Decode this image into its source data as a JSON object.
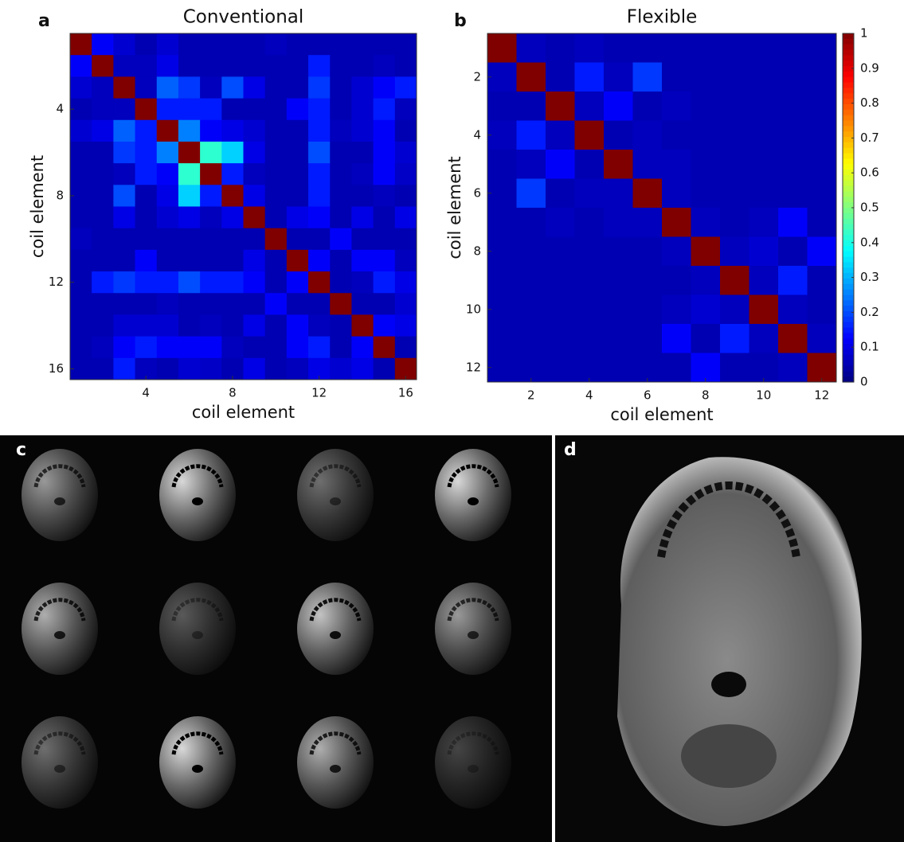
{
  "chart_data": [
    {
      "type": "heatmap",
      "panel_label": "a",
      "title": "Conventional",
      "x_label": "coil element",
      "y_label": "coil element",
      "xlim": [
        0.5,
        16.5
      ],
      "ylim": [
        0.5,
        16.5
      ],
      "y_reversed": true,
      "xticks": [
        4,
        8,
        12,
        16
      ],
      "yticks": [
        4,
        8,
        12,
        16
      ],
      "colormap": "jet",
      "clim": [
        0,
        1
      ],
      "values": [
        [
          1,
          0.12,
          0.08,
          0.05,
          0.08,
          0.05,
          0.05,
          0.05,
          0.05,
          0.06,
          0.05,
          0.05,
          0.05,
          0.05,
          0.05,
          0.05
        ],
        [
          0.12,
          1,
          0.06,
          0.06,
          0.1,
          0.05,
          0.05,
          0.05,
          0.05,
          0.05,
          0.05,
          0.15,
          0.05,
          0.05,
          0.06,
          0.05
        ],
        [
          0.08,
          0.06,
          1,
          0.06,
          0.22,
          0.18,
          0.06,
          0.2,
          0.1,
          0.05,
          0.05,
          0.18,
          0.05,
          0.08,
          0.12,
          0.15
        ],
        [
          0.05,
          0.06,
          0.06,
          1,
          0.15,
          0.15,
          0.15,
          0.05,
          0.05,
          0.05,
          0.12,
          0.15,
          0.05,
          0.08,
          0.15,
          0.06
        ],
        [
          0.08,
          0.1,
          0.22,
          0.15,
          1,
          0.25,
          0.12,
          0.1,
          0.08,
          0.05,
          0.05,
          0.15,
          0.06,
          0.08,
          0.12,
          0.05
        ],
        [
          0.05,
          0.05,
          0.18,
          0.15,
          0.25,
          1,
          0.42,
          0.33,
          0.1,
          0.05,
          0.05,
          0.2,
          0.05,
          0.05,
          0.12,
          0.08
        ],
        [
          0.05,
          0.05,
          0.06,
          0.15,
          0.12,
          0.42,
          1,
          0.15,
          0.06,
          0.05,
          0.05,
          0.15,
          0.05,
          0.06,
          0.12,
          0.07
        ],
        [
          0.05,
          0.05,
          0.2,
          0.05,
          0.1,
          0.33,
          0.15,
          1,
          0.1,
          0.05,
          0.05,
          0.15,
          0.05,
          0.05,
          0.06,
          0.05
        ],
        [
          0.05,
          0.05,
          0.1,
          0.05,
          0.08,
          0.1,
          0.06,
          0.1,
          1,
          0.05,
          0.1,
          0.12,
          0.05,
          0.1,
          0.05,
          0.1
        ],
        [
          0.06,
          0.05,
          0.05,
          0.05,
          0.05,
          0.05,
          0.05,
          0.05,
          0.05,
          1,
          0.05,
          0.05,
          0.12,
          0.05,
          0.05,
          0.05
        ],
        [
          0.05,
          0.05,
          0.05,
          0.12,
          0.05,
          0.05,
          0.05,
          0.05,
          0.1,
          0.05,
          1,
          0.12,
          0.05,
          0.12,
          0.12,
          0.06
        ],
        [
          0.05,
          0.15,
          0.18,
          0.15,
          0.15,
          0.2,
          0.15,
          0.15,
          0.12,
          0.05,
          0.12,
          1,
          0.05,
          0.06,
          0.15,
          0.1
        ],
        [
          0.05,
          0.05,
          0.05,
          0.05,
          0.06,
          0.05,
          0.05,
          0.05,
          0.05,
          0.12,
          0.05,
          0.05,
          1,
          0.05,
          0.05,
          0.08
        ],
        [
          0.05,
          0.05,
          0.08,
          0.08,
          0.08,
          0.05,
          0.06,
          0.05,
          0.1,
          0.05,
          0.12,
          0.06,
          0.05,
          1,
          0.12,
          0.1
        ],
        [
          0.05,
          0.06,
          0.12,
          0.15,
          0.12,
          0.12,
          0.12,
          0.06,
          0.05,
          0.05,
          0.12,
          0.15,
          0.05,
          0.12,
          1,
          0.05
        ],
        [
          0.05,
          0.05,
          0.15,
          0.06,
          0.05,
          0.08,
          0.07,
          0.05,
          0.1,
          0.05,
          0.06,
          0.1,
          0.08,
          0.1,
          0.05,
          1
        ]
      ]
    },
    {
      "type": "heatmap",
      "panel_label": "b",
      "title": "Flexible",
      "x_label": "coil element",
      "y_label": "coil element",
      "xlim": [
        0.5,
        12.5
      ],
      "ylim": [
        0.5,
        12.5
      ],
      "y_reversed": true,
      "xticks": [
        2,
        4,
        6,
        8,
        10,
        12
      ],
      "yticks": [
        2,
        4,
        6,
        8,
        10,
        12
      ],
      "colormap": "jet",
      "clim": [
        0,
        1
      ],
      "colorbar": true,
      "cticks": [
        0,
        0.1,
        0.2,
        0.3,
        0.4,
        0.5,
        0.6,
        0.7,
        0.8,
        0.9,
        1
      ],
      "values": [
        [
          1,
          0.06,
          0.05,
          0.06,
          0.05,
          0.05,
          0.05,
          0.05,
          0.05,
          0.05,
          0.05,
          0.05
        ],
        [
          0.06,
          1,
          0.05,
          0.15,
          0.06,
          0.18,
          0.05,
          0.05,
          0.05,
          0.05,
          0.05,
          0.05
        ],
        [
          0.05,
          0.05,
          1,
          0.06,
          0.12,
          0.05,
          0.06,
          0.05,
          0.05,
          0.05,
          0.05,
          0.05
        ],
        [
          0.06,
          0.15,
          0.06,
          1,
          0.05,
          0.06,
          0.05,
          0.05,
          0.05,
          0.05,
          0.05,
          0.05
        ],
        [
          0.05,
          0.06,
          0.12,
          0.05,
          1,
          0.06,
          0.06,
          0.05,
          0.05,
          0.05,
          0.05,
          0.05
        ],
        [
          0.05,
          0.18,
          0.05,
          0.06,
          0.06,
          1,
          0.06,
          0.05,
          0.05,
          0.05,
          0.05,
          0.05
        ],
        [
          0.05,
          0.05,
          0.06,
          0.05,
          0.06,
          0.06,
          1,
          0.06,
          0.05,
          0.06,
          0.12,
          0.05
        ],
        [
          0.05,
          0.05,
          0.05,
          0.05,
          0.05,
          0.05,
          0.06,
          1,
          0.06,
          0.08,
          0.05,
          0.12
        ],
        [
          0.05,
          0.05,
          0.05,
          0.05,
          0.05,
          0.05,
          0.05,
          0.06,
          1,
          0.06,
          0.15,
          0.05
        ],
        [
          0.05,
          0.05,
          0.05,
          0.05,
          0.05,
          0.05,
          0.06,
          0.08,
          0.06,
          1,
          0.06,
          0.05
        ],
        [
          0.05,
          0.05,
          0.05,
          0.05,
          0.05,
          0.05,
          0.12,
          0.05,
          0.15,
          0.06,
          1,
          0.06
        ],
        [
          0.05,
          0.05,
          0.05,
          0.05,
          0.05,
          0.05,
          0.05,
          0.12,
          0.05,
          0.05,
          0.06,
          1
        ]
      ]
    }
  ],
  "images": [
    {
      "panel_label": "c"
    },
    {
      "panel_label": "d"
    }
  ]
}
